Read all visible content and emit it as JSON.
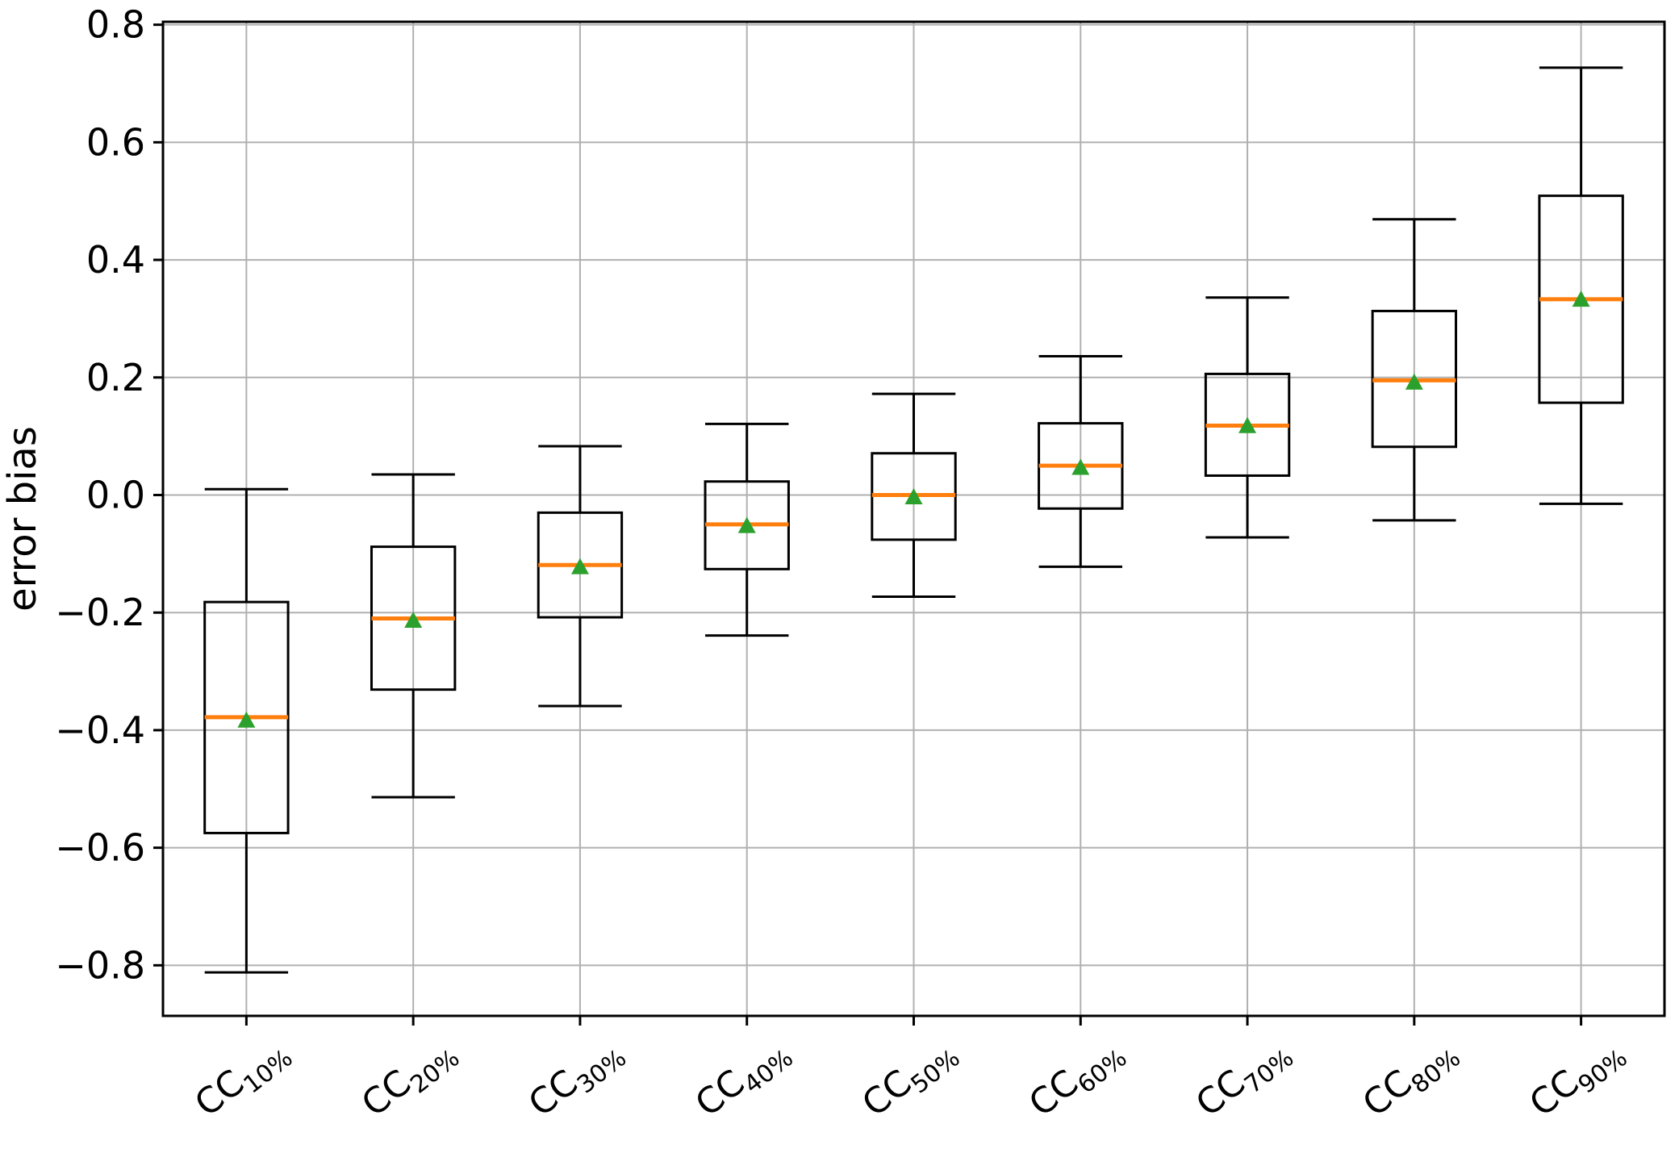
{
  "chart_data": {
    "type": "boxplot",
    "title": "",
    "xlabel": "",
    "ylabel": "error bias",
    "grid": true,
    "legend": "none",
    "ylim": [
      -0.886,
      0.805
    ],
    "yticks": [
      0.8,
      0.6,
      0.4,
      0.2,
      0.0,
      -0.2,
      -0.4,
      -0.6,
      -0.8
    ],
    "ytick_labels": [
      "0.8",
      "0.6",
      "0.4",
      "0.2",
      "0.0",
      "−0.2",
      "−0.4",
      "−0.6",
      "−0.8"
    ],
    "categories": [
      "CC10%",
      "CC20%",
      "CC30%",
      "CC40%",
      "CC50%",
      "CC60%",
      "CC70%",
      "CC80%",
      "CC90%"
    ],
    "series": [
      {
        "label": "CC10%",
        "prefix": "CC",
        "subscript": "10%",
        "whisker_low": -0.812,
        "q1": -0.575,
        "median": -0.378,
        "mean": -0.382,
        "q3": -0.182,
        "whisker_high": 0.01
      },
      {
        "label": "CC20%",
        "prefix": "CC",
        "subscript": "20%",
        "whisker_low": -0.514,
        "q1": -0.331,
        "median": -0.21,
        "mean": -0.212,
        "q3": -0.088,
        "whisker_high": 0.035
      },
      {
        "label": "CC30%",
        "prefix": "CC",
        "subscript": "30%",
        "whisker_low": -0.359,
        "q1": -0.208,
        "median": -0.119,
        "mean": -0.121,
        "q3": -0.03,
        "whisker_high": 0.083
      },
      {
        "label": "CC40%",
        "prefix": "CC",
        "subscript": "40%",
        "whisker_low": -0.239,
        "q1": -0.126,
        "median": -0.05,
        "mean": -0.051,
        "q3": 0.023,
        "whisker_high": 0.121
      },
      {
        "label": "CC50%",
        "prefix": "CC",
        "subscript": "50%",
        "whisker_low": -0.173,
        "q1": -0.076,
        "median": 0.0,
        "mean": -0.002,
        "q3": 0.071,
        "whisker_high": 0.172
      },
      {
        "label": "CC60%",
        "prefix": "CC",
        "subscript": "60%",
        "whisker_low": -0.122,
        "q1": -0.023,
        "median": 0.05,
        "mean": 0.048,
        "q3": 0.122,
        "whisker_high": 0.236
      },
      {
        "label": "CC70%",
        "prefix": "CC",
        "subscript": "70%",
        "whisker_low": -0.072,
        "q1": 0.033,
        "median": 0.118,
        "mean": 0.119,
        "q3": 0.206,
        "whisker_high": 0.336
      },
      {
        "label": "CC80%",
        "prefix": "CC",
        "subscript": "80%",
        "whisker_low": -0.043,
        "q1": 0.082,
        "median": 0.195,
        "mean": 0.193,
        "q3": 0.313,
        "whisker_high": 0.469
      },
      {
        "label": "CC90%",
        "prefix": "CC",
        "subscript": "90%",
        "whisker_low": -0.015,
        "q1": 0.157,
        "median": 0.333,
        "mean": 0.334,
        "q3": 0.509,
        "whisker_high": 0.727
      }
    ],
    "colors": {
      "median": "#ff7f0e",
      "mean_marker": "#2ca02c",
      "box_edge": "#000000",
      "grid": "#b0b0b0",
      "spine": "#000000",
      "background": "#ffffff"
    },
    "mean_marker_shape": "triangle-up"
  }
}
